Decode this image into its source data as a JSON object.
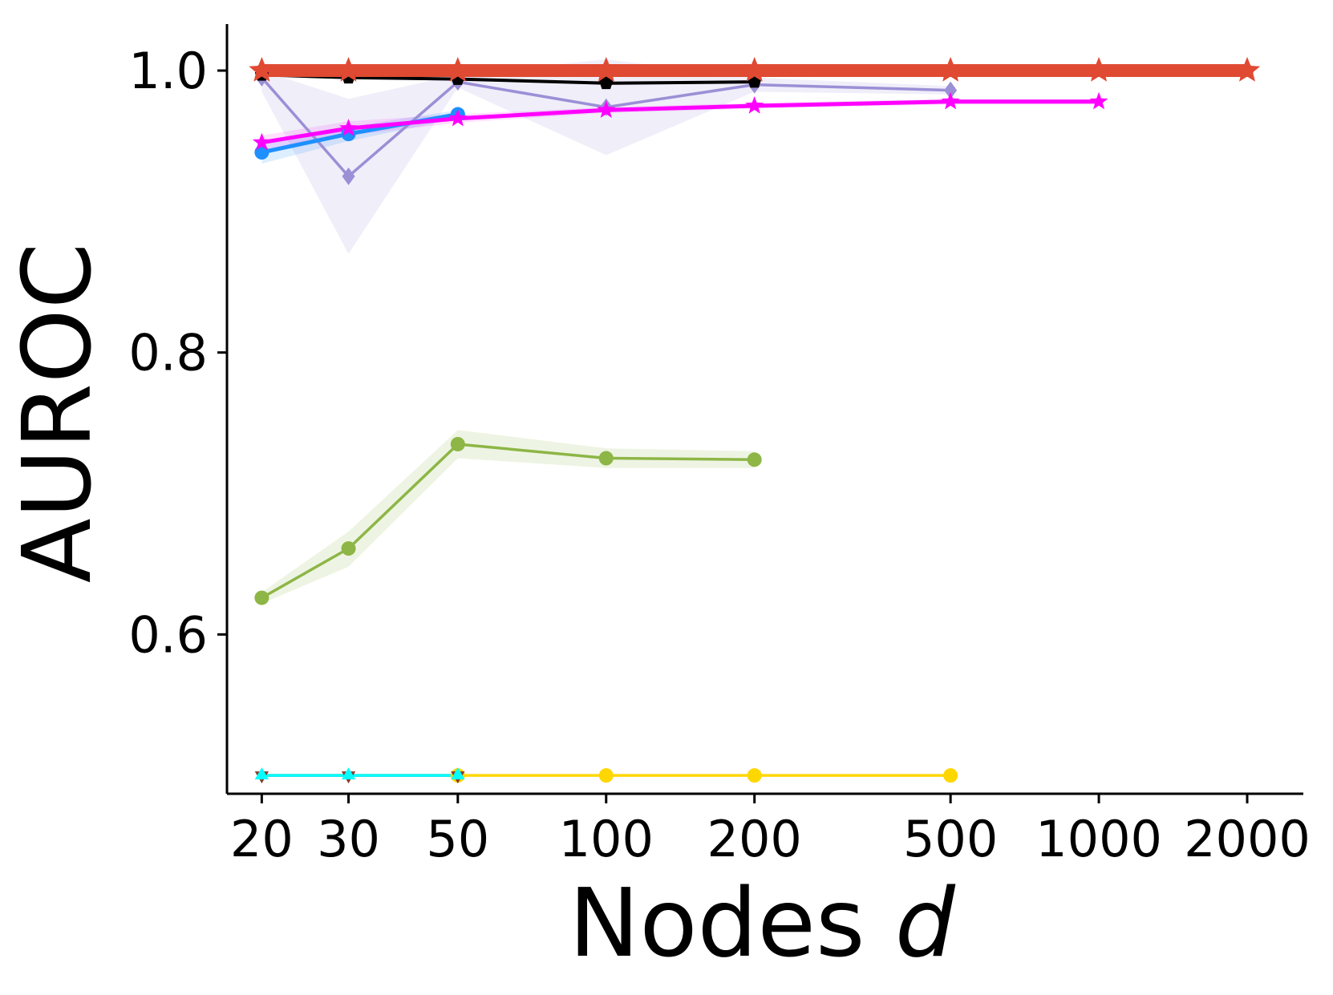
{
  "chart_data": {
    "type": "line",
    "xlabel": "Nodes",
    "xlabel_var": "d",
    "ylabel": "AUROC",
    "x_scale": "log",
    "xlim": [
      17,
      2600
    ],
    "ylim": [
      0.487,
      1.033
    ],
    "x_ticks": [
      20,
      30,
      50,
      100,
      200,
      500,
      1000,
      2000
    ],
    "x_tick_labels": [
      "20",
      "30",
      "50",
      "100",
      "200",
      "500",
      "1000",
      "2000"
    ],
    "y_ticks": [
      0.6,
      0.8,
      1.0
    ],
    "y_tick_labels": [
      "0.6",
      "0.8",
      "1.0"
    ],
    "grid": false,
    "legend": "none",
    "series": [
      {
        "color": "#ffd700",
        "marker": "circle",
        "line_width": 3.5,
        "x": [
          50,
          100,
          200,
          500
        ],
        "y": [
          0.5,
          0.5,
          0.5,
          0.5
        ],
        "band": null
      },
      {
        "color": "#8b3a2b",
        "marker": "triangle-down",
        "line_width": 3.5,
        "x": [
          20,
          30,
          50
        ],
        "y": [
          0.5,
          0.5,
          0.5
        ],
        "band": null
      },
      {
        "color": "#00ffff",
        "marker": "triangle-up",
        "line_width": 3.5,
        "x": [
          20,
          30,
          50
        ],
        "y": [
          0.5,
          0.5,
          0.5
        ],
        "band": null
      },
      {
        "color": "#8db646",
        "marker": "circle",
        "line_width": 3.5,
        "x": [
          20,
          30,
          50,
          100,
          200
        ],
        "y": [
          0.626,
          0.661,
          0.735,
          0.725,
          0.724
        ],
        "band": {
          "lower": [
            0.622,
            0.648,
            0.725,
            0.718,
            0.718
          ],
          "upper": [
            0.63,
            0.673,
            0.745,
            0.732,
            0.73
          ],
          "color": "#8db646",
          "opacity": 0.15
        }
      },
      {
        "color": "#9b8fd6",
        "marker": "diamond",
        "line_width": 3.5,
        "x": [
          20,
          30,
          50,
          100,
          200,
          500
        ],
        "y": [
          0.995,
          0.925,
          0.992,
          0.974,
          0.99,
          0.986
        ],
        "band": {
          "lower": [
            0.985,
            0.87,
            0.988,
            0.94,
            0.985,
            0.983
          ],
          "upper": [
            1.0,
            0.98,
            0.997,
            1.008,
            0.995,
            0.989
          ],
          "color": "#9b8fd6",
          "opacity": 0.15
        }
      },
      {
        "color": "#1e90ff",
        "marker": "circle",
        "line_width": 5,
        "x": [
          20,
          30,
          50
        ],
        "y": [
          0.942,
          0.955,
          0.969
        ],
        "band": {
          "lower": [
            0.934,
            0.95,
            0.966
          ],
          "upper": [
            0.95,
            0.96,
            0.972
          ],
          "color": "#1e90ff",
          "opacity": 0.15
        }
      },
      {
        "color": "#ff00ff",
        "marker": "star",
        "line_width": 5,
        "x": [
          20,
          30,
          50,
          100,
          200,
          500,
          1000
        ],
        "y": [
          0.949,
          0.959,
          0.966,
          0.972,
          0.975,
          0.978,
          0.978
        ],
        "band": {
          "lower": [
            0.944,
            0.954,
            0.963,
            0.97,
            0.973,
            0.976,
            0.976
          ],
          "upper": [
            0.954,
            0.964,
            0.969,
            0.974,
            0.977,
            0.98,
            0.98
          ],
          "color": "#ff00ff",
          "opacity": 0.12
        }
      },
      {
        "color": "#000000",
        "marker": "pentagon",
        "line_width": 4,
        "x": [
          20,
          30,
          50,
          100,
          200
        ],
        "y": [
          0.997,
          0.995,
          0.994,
          0.991,
          0.992
        ],
        "band": null
      },
      {
        "color": "#e04a32",
        "marker": "star",
        "line_width": 16,
        "x": [
          20,
          30,
          50,
          100,
          200,
          500,
          1000,
          2000
        ],
        "y": [
          1.0,
          1.0,
          1.0,
          1.0,
          1.0,
          1.0,
          1.0,
          1.0
        ],
        "band": null
      }
    ]
  }
}
